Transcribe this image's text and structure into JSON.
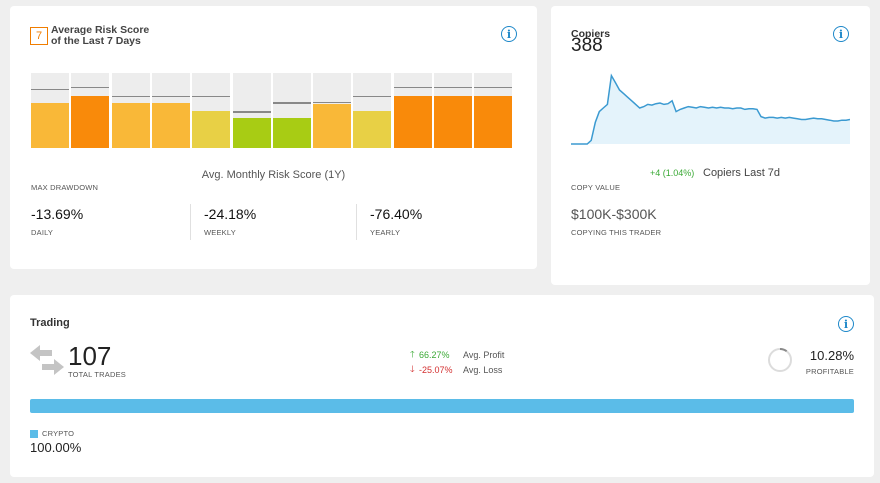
{
  "risk_card": {
    "badge": "7",
    "title": "Average Risk Score of the Last 7 Days",
    "avg_monthly_label": "Avg. Monthly Risk Score (1Y)",
    "months": [
      {
        "level": 0.6,
        "line": 0.77,
        "color": "#f9b838"
      },
      {
        "level": 0.69,
        "line": 0.8,
        "color": "#f98a0a"
      },
      {
        "level": 0.6,
        "line": 0.68,
        "color": "#f9b838"
      },
      {
        "level": 0.6,
        "line": 0.68,
        "color": "#f9b838"
      },
      {
        "level": 0.49,
        "line": 0.68,
        "color": "#e8d045"
      },
      {
        "level": 0.4,
        "line": 0.47,
        "color": "#a8cc14"
      },
      {
        "level": 0.4,
        "line": 0.59,
        "color": "#a8cc14"
      },
      {
        "level": 0.59,
        "line": 0.6,
        "color": "#f9b838"
      },
      {
        "level": 0.49,
        "line": 0.68,
        "color": "#e8d045"
      },
      {
        "level": 0.69,
        "line": 0.8,
        "color": "#f98a0a"
      },
      {
        "level": 0.69,
        "line": 0.8,
        "color": "#f98a0a"
      },
      {
        "level": 0.69,
        "line": 0.8,
        "color": "#f98a0a"
      }
    ],
    "max_drawdown_title": "MAX DRAWDOWN",
    "drawdowns": [
      {
        "value": "-13.69%",
        "label": "DAILY"
      },
      {
        "value": "-24.18%",
        "label": "WEEKLY"
      },
      {
        "value": "-76.40%",
        "label": "YEARLY"
      }
    ]
  },
  "copiers_card": {
    "title": "Copiers",
    "count": "388",
    "change": "+4 (1.04%)",
    "change_label": "Copiers Last 7d",
    "trend": [
      0,
      0,
      0,
      0,
      0,
      0.05,
      0.3,
      0.45,
      0.5,
      0.55,
      0.95,
      0.85,
      0.75,
      0.7,
      0.65,
      0.6,
      0.55,
      0.5,
      0.52,
      0.55,
      0.54,
      0.56,
      0.57,
      0.55,
      0.56,
      0.6,
      0.45,
      0.48,
      0.5,
      0.52,
      0.51,
      0.5,
      0.52,
      0.51,
      0.5,
      0.51,
      0.5,
      0.51,
      0.5,
      0.5,
      0.49,
      0.5,
      0.5,
      0.48,
      0.49,
      0.49,
      0.48,
      0.38,
      0.36,
      0.37,
      0.37,
      0.36,
      0.37,
      0.36,
      0.37,
      0.36,
      0.35,
      0.34,
      0.34,
      0.35,
      0.36,
      0.35,
      0.35,
      0.34,
      0.33,
      0.32,
      0.32,
      0.33,
      0.33,
      0.34
    ],
    "copy_value_title": "COPY VALUE",
    "copy_value": "$100K-$300K",
    "copying_label": "COPYING THIS TRADER"
  },
  "trading_card": {
    "title": "Trading",
    "total_trades": "107",
    "total_trades_label": "TOTAL TRADES",
    "avg_profit_pct": "66.27%",
    "avg_profit_label": "Avg. Profit",
    "avg_loss_pct": "-25.07%",
    "avg_loss_label": "Avg. Loss",
    "profitable_pct": "10.28%",
    "profitable_fraction": 0.1028,
    "profitable_label": "PROFITABLE",
    "asset_label": "CRYPTO",
    "asset_pct": "100.00%"
  },
  "colors": {
    "accent": "#1e88c9",
    "positive": "#3aa935",
    "negative": "#d32f2f",
    "crypto": "#5bbce8"
  },
  "icons": {
    "info": "info-icon",
    "swap": "swap-arrows-icon",
    "up": "arrow-up-icon",
    "down": "arrow-down-icon"
  }
}
